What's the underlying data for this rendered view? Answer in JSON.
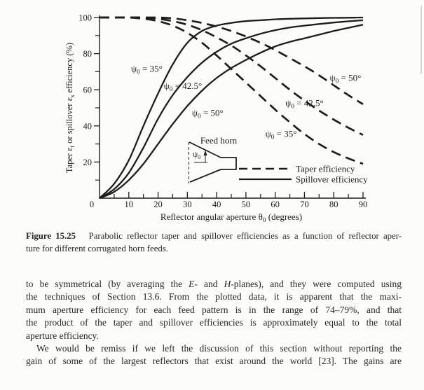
{
  "document": {
    "caption": {
      "indent": false,
      "justify_last": false,
      "lines": [
        "<b>Figure 15.25</b>&nbsp;&nbsp; Parabolic reflector taper and spillover efficiencies as a function of reflector aper-",
        "ture for different corrugated horn feeds."
      ]
    },
    "paragraphs": [
      {
        "indent": false,
        "justify_last": false,
        "lines": [
          "to be symmetrical (by averaging the <i>E</i>- and <i>H</i>-planes), and they were computed using",
          "the techniques of Section 13.6. From the plotted data, it is apparent that the maxi-",
          "mum aperture efficiency for each feed pattern is in the range of 74–79%, and that",
          "the product of the taper and spillover efficiencies is approximately equal to the total",
          "aperture efficiency."
        ]
      },
      {
        "indent": true,
        "justify_last": true,
        "lines": [
          "We would be remiss if we left the discussion of this section without reporting the",
          "gain of some of the largest reflectors that exist around the world [23]. The gains are"
        ]
      }
    ]
  },
  "chart_data": {
    "type": "line",
    "title": "",
    "xlabel": "Reflector angular aperture θ_0_ (degrees)",
    "ylabel": "Taper ε_t_ or spillover ε_s_ efficiency (%)",
    "xlim": [
      0,
      90
    ],
    "ylim": [
      0,
      100
    ],
    "x_ticks": [
      0,
      10,
      20,
      30,
      40,
      50,
      60,
      70,
      80,
      90
    ],
    "x_minor_ticks": [
      5,
      15,
      25,
      35,
      45,
      55,
      65,
      75,
      85
    ],
    "y_ticks": [
      20,
      40,
      60,
      80,
      100
    ],
    "y_minor_ticks": [
      10,
      30,
      50,
      70,
      90
    ],
    "origin_label": "0",
    "grid": false,
    "x": [
      0,
      5,
      10,
      15,
      20,
      25,
      30,
      35,
      40,
      45,
      50,
      55,
      60,
      65,
      70,
      75,
      80,
      85,
      90
    ],
    "series": [
      {
        "name": "spillover-35deg",
        "group": "Spillover efficiency",
        "style": "solid",
        "psi0": "35°",
        "values": [
          0,
          8,
          21,
          40,
          58,
          74,
          86,
          92.5,
          95.5,
          97,
          98,
          98.5,
          99,
          99.3,
          99.5,
          99.7,
          99.8,
          99.9,
          100
        ],
        "label": {
          "text": "ψ_0_ = 35°",
          "x": 21.5,
          "y": 71.5,
          "anchor": "end"
        }
      },
      {
        "name": "spillover-42.5deg",
        "group": "Spillover efficiency",
        "style": "solid",
        "psi0": "42.5°",
        "values": [
          0,
          5,
          14,
          28,
          44,
          57,
          67,
          75,
          81,
          85.5,
          88.5,
          91,
          93,
          94.5,
          95.5,
          96.4,
          97.2,
          97.9,
          98.5
        ],
        "label": {
          "text": "ψ_0_ = 42.5°",
          "x": 35,
          "y": 62,
          "anchor": "end"
        }
      },
      {
        "name": "spillover-50deg",
        "group": "Spillover efficiency",
        "style": "solid",
        "psi0": "50°",
        "values": [
          0,
          3.5,
          10,
          19,
          30,
          41,
          51,
          59.5,
          66.5,
          72,
          76.5,
          80.5,
          84,
          86.5,
          88.5,
          90.5,
          92.5,
          94.3,
          96
        ],
        "label": {
          "text": "ψ_0_ = 50°",
          "x": 42.3,
          "y": 47,
          "anchor": "end"
        }
      },
      {
        "name": "taper-35deg",
        "group": "Taper efficiency",
        "style": "dashed",
        "psi0": "35°",
        "values": [
          100,
          100,
          100,
          99.3,
          98,
          95.5,
          91.5,
          86,
          79,
          71.5,
          64,
          56.5,
          49,
          42,
          35.5,
          30,
          25.5,
          22,
          19
        ],
        "label": {
          "text": "ψ_0_ = 35°",
          "x": 62,
          "y": 35.5,
          "anchor": "middle"
        }
      },
      {
        "name": "taper-42.5deg",
        "group": "Taper efficiency",
        "style": "dashed",
        "psi0": "42.5°",
        "values": [
          100,
          100,
          100,
          100,
          99.3,
          98,
          96,
          93,
          89,
          84.5,
          79,
          73,
          66.5,
          60,
          54,
          48.5,
          43.5,
          39,
          35
        ],
        "label": {
          "text": "ψ_0_ = 42.5°",
          "x": 70,
          "y": 52.5,
          "anchor": "middle"
        }
      },
      {
        "name": "taper-50deg",
        "group": "Taper efficiency",
        "style": "dashed",
        "psi0": "50°",
        "values": [
          100,
          100,
          100,
          100,
          100,
          99.5,
          98.5,
          97,
          95,
          92.5,
          89.5,
          86,
          82,
          77.5,
          73,
          68,
          62.5,
          57,
          52
        ],
        "label": {
          "text": "ψ_0_ = 50°",
          "x": 84,
          "y": 66.5,
          "anchor": "middle"
        }
      }
    ],
    "legend": [
      {
        "style": "dashed",
        "label": "Taper efficiency"
      },
      {
        "style": "solid",
        "label": "Spillover efficiency"
      }
    ],
    "legend_position": "inside-bottom-right",
    "inset": {
      "label": "Feed horn",
      "angle_label": "ψ_0_"
    },
    "ink_color": "#1d1d1d"
  }
}
